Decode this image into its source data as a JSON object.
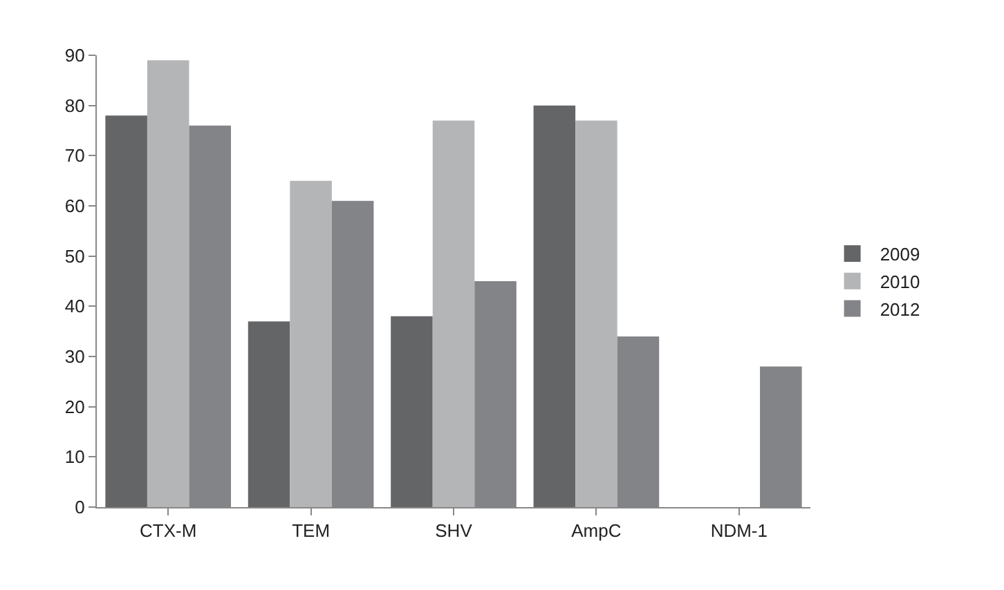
{
  "chart_data": {
    "type": "bar",
    "categories": [
      "CTX-M",
      "TEM",
      "SHV",
      "AmpC",
      "NDM-1"
    ],
    "series": [
      {
        "name": "2009",
        "color": "#646567",
        "values": [
          78,
          37,
          38,
          80,
          0
        ]
      },
      {
        "name": "2010",
        "color": "#b4b5b7",
        "values": [
          89,
          65,
          77,
          77,
          0
        ]
      },
      {
        "name": "2012",
        "color": "#838487",
        "values": [
          76,
          61,
          45,
          34,
          28
        ]
      }
    ],
    "ylim": [
      0,
      90
    ],
    "yticks": [
      0,
      10,
      20,
      30,
      40,
      50,
      60,
      70,
      80,
      90
    ],
    "grid": false,
    "legend": "right"
  }
}
